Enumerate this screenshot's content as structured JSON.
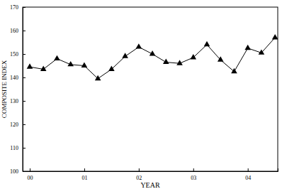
{
  "chart_data": {
    "type": "line",
    "x_label": "YEAR",
    "y_label": "COMPOSITE INDEX",
    "x": [
      0,
      0.25,
      0.5,
      0.75,
      1,
      1.25,
      1.5,
      1.75,
      2,
      2.25,
      2.5,
      2.75,
      3,
      3.25,
      3.5,
      3.75,
      4,
      4.25,
      4.5
    ],
    "values": [
      144.5,
      143.5,
      148,
      145.5,
      145,
      139.5,
      143.5,
      149,
      153,
      150,
      146.5,
      146,
      148.5,
      154,
      147.5,
      142.5,
      152.5,
      150.5,
      157
    ],
    "color": "#000000",
    "marker": "triangle",
    "xlim": [
      -0.13,
      4.55
    ],
    "xticks": [
      {
        "value": 0,
        "label": "00"
      },
      {
        "value": 1,
        "label": "01"
      },
      {
        "value": 2,
        "label": "02"
      },
      {
        "value": 3,
        "label": "03"
      },
      {
        "value": 4,
        "label": "04"
      }
    ],
    "ylim": [
      100,
      170
    ],
    "yticks": [
      100,
      110,
      120,
      130,
      140,
      150,
      160,
      170
    ],
    "grid": false
  }
}
